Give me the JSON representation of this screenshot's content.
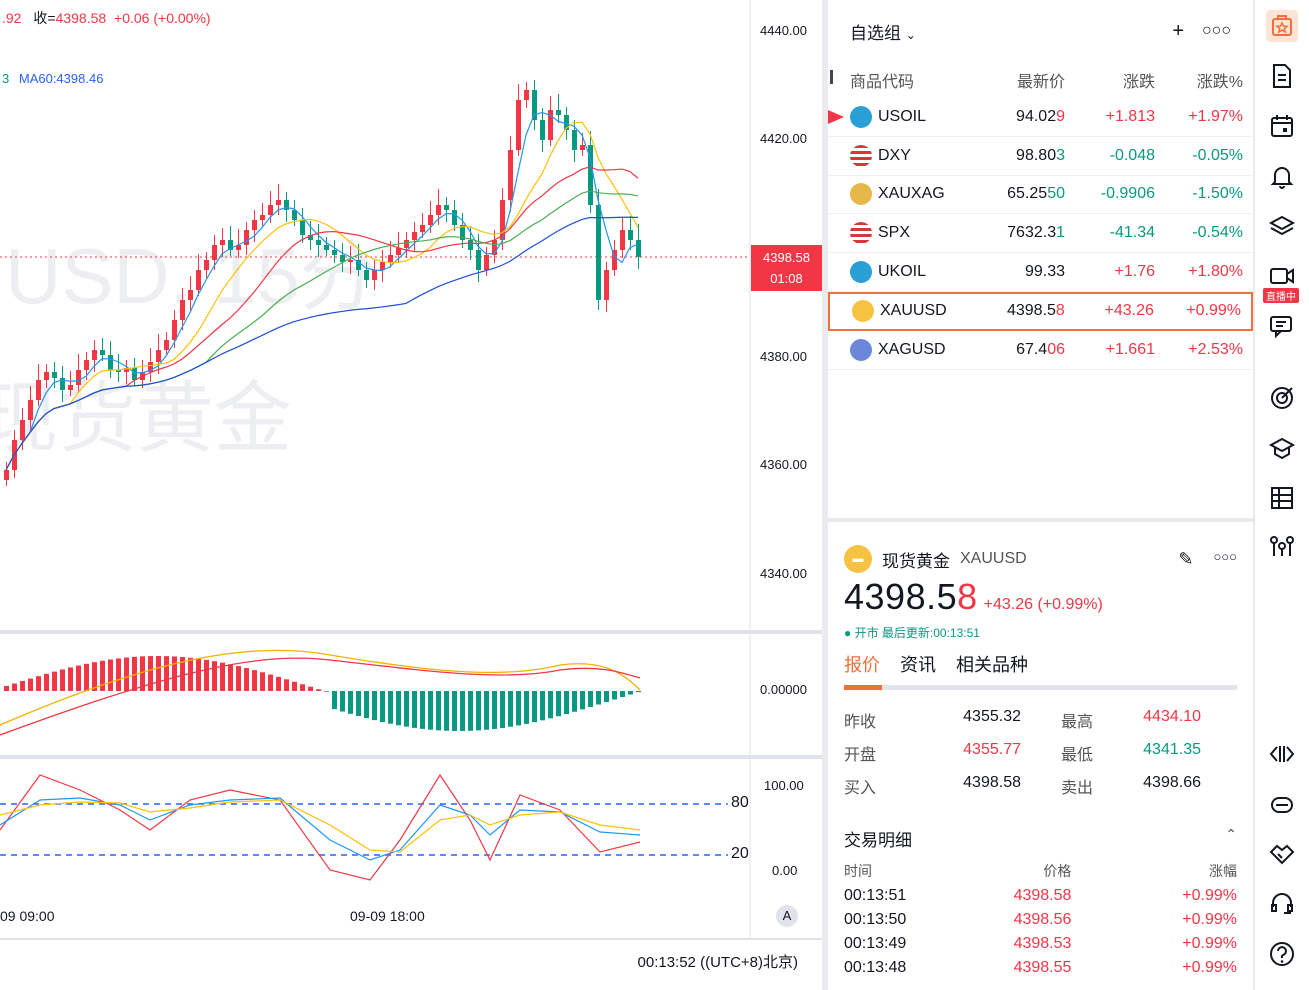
{
  "chart": {
    "legend_partial": ".92",
    "close_label": "收=",
    "close_value": "4398.58",
    "close_change": "+0.06 (+0.00%)",
    "ma_prefix": "3",
    "ma60": "MA60:4398.46",
    "watermark_symbol": "USD, 15分",
    "watermark_name": "现货黄金",
    "price_tag": "4398.58",
    "countdown": "01:08",
    "price_axis": [
      "4440.00",
      "4420.00",
      "4400.00",
      "4380.00",
      "4360.00",
      "4340.00"
    ],
    "macd_axis": "0.00000",
    "kdj_axis": [
      "100.00",
      "0.00"
    ],
    "kdj_levels": [
      "80",
      "20"
    ],
    "time_axis": [
      "09 09:00",
      "09-09 18:00"
    ],
    "auto_label": "A",
    "clock": "00:13:52",
    "timezone": "((UTC+8)北京)"
  },
  "watchlist": {
    "title": "自选组",
    "columns": [
      "商品代码",
      "最新价",
      "涨跌",
      "涨跌%"
    ],
    "rows": [
      {
        "symbol": "USOIL",
        "last_main": "94.02",
        "last_tail": "9",
        "chg": "+1.813",
        "pct": "+1.97%",
        "dir": "up",
        "icon": "oil-icon"
      },
      {
        "symbol": "DXY",
        "last_main": "98.80",
        "last_tail": "3",
        "chg": "-0.048",
        "pct": "-0.05%",
        "dir": "down",
        "icon": "us-flag-icon"
      },
      {
        "symbol": "XAUXAG",
        "last_main": "65.25",
        "last_tail": "50",
        "chg": "-0.9906",
        "pct": "-1.50%",
        "dir": "down",
        "icon": "gold-silver-icon"
      },
      {
        "symbol": "SPX",
        "last_main": "7632.3",
        "last_tail": "1",
        "chg": "-41.34",
        "pct": "-0.54%",
        "dir": "down",
        "icon": "us-flag-icon"
      },
      {
        "symbol": "UKOIL",
        "last_main": "99.33",
        "last_tail": "",
        "chg": "+1.76",
        "pct": "+1.80%",
        "dir": "up",
        "icon": "oil-icon"
      },
      {
        "symbol": "XAUUSD",
        "last_main": "4398.5",
        "last_tail": "8",
        "chg": "+43.26",
        "pct": "+0.99%",
        "dir": "up",
        "icon": "gold-icon"
      },
      {
        "symbol": "XAGUSD",
        "last_main": "67.4",
        "last_tail": "06",
        "chg": "+1.661",
        "pct": "+2.53%",
        "dir": "up",
        "icon": "silver-icon"
      }
    ]
  },
  "detail": {
    "name": "现货黄金",
    "symbol": "XAUUSD",
    "price_main": "4398.5",
    "price_tail": "8",
    "change": "+43.26 (+0.99%)",
    "status": "● 开市 最后更新:00:13:51",
    "tabs": [
      "报价",
      "资讯",
      "相关品种"
    ],
    "quote": {
      "prev_close_label": "昨收",
      "prev_close": "4355.32",
      "high_label": "最高",
      "high": "4434.10",
      "open_label": "开盘",
      "open": "4355.77",
      "low_label": "最低",
      "low": "4341.35",
      "bid_label": "买入",
      "bid": "4398.58",
      "ask_label": "卖出",
      "ask": "4398.66"
    },
    "trades_title": "交易明细",
    "trades_columns": [
      "时间",
      "价格",
      "涨幅"
    ],
    "trades": [
      {
        "time": "00:13:51",
        "price": "4398.58",
        "pct": "+0.99%"
      },
      {
        "time": "00:13:50",
        "price": "4398.56",
        "pct": "+0.99%"
      },
      {
        "time": "00:13:49",
        "price": "4398.53",
        "pct": "+0.99%"
      },
      {
        "time": "00:13:48",
        "price": "4398.55",
        "pct": "+0.99%"
      }
    ]
  },
  "toolbar": {
    "live_badge": "直播中"
  },
  "colors": {
    "up": "#f23645",
    "down": "#089981",
    "accent": "#f26f3a"
  }
}
